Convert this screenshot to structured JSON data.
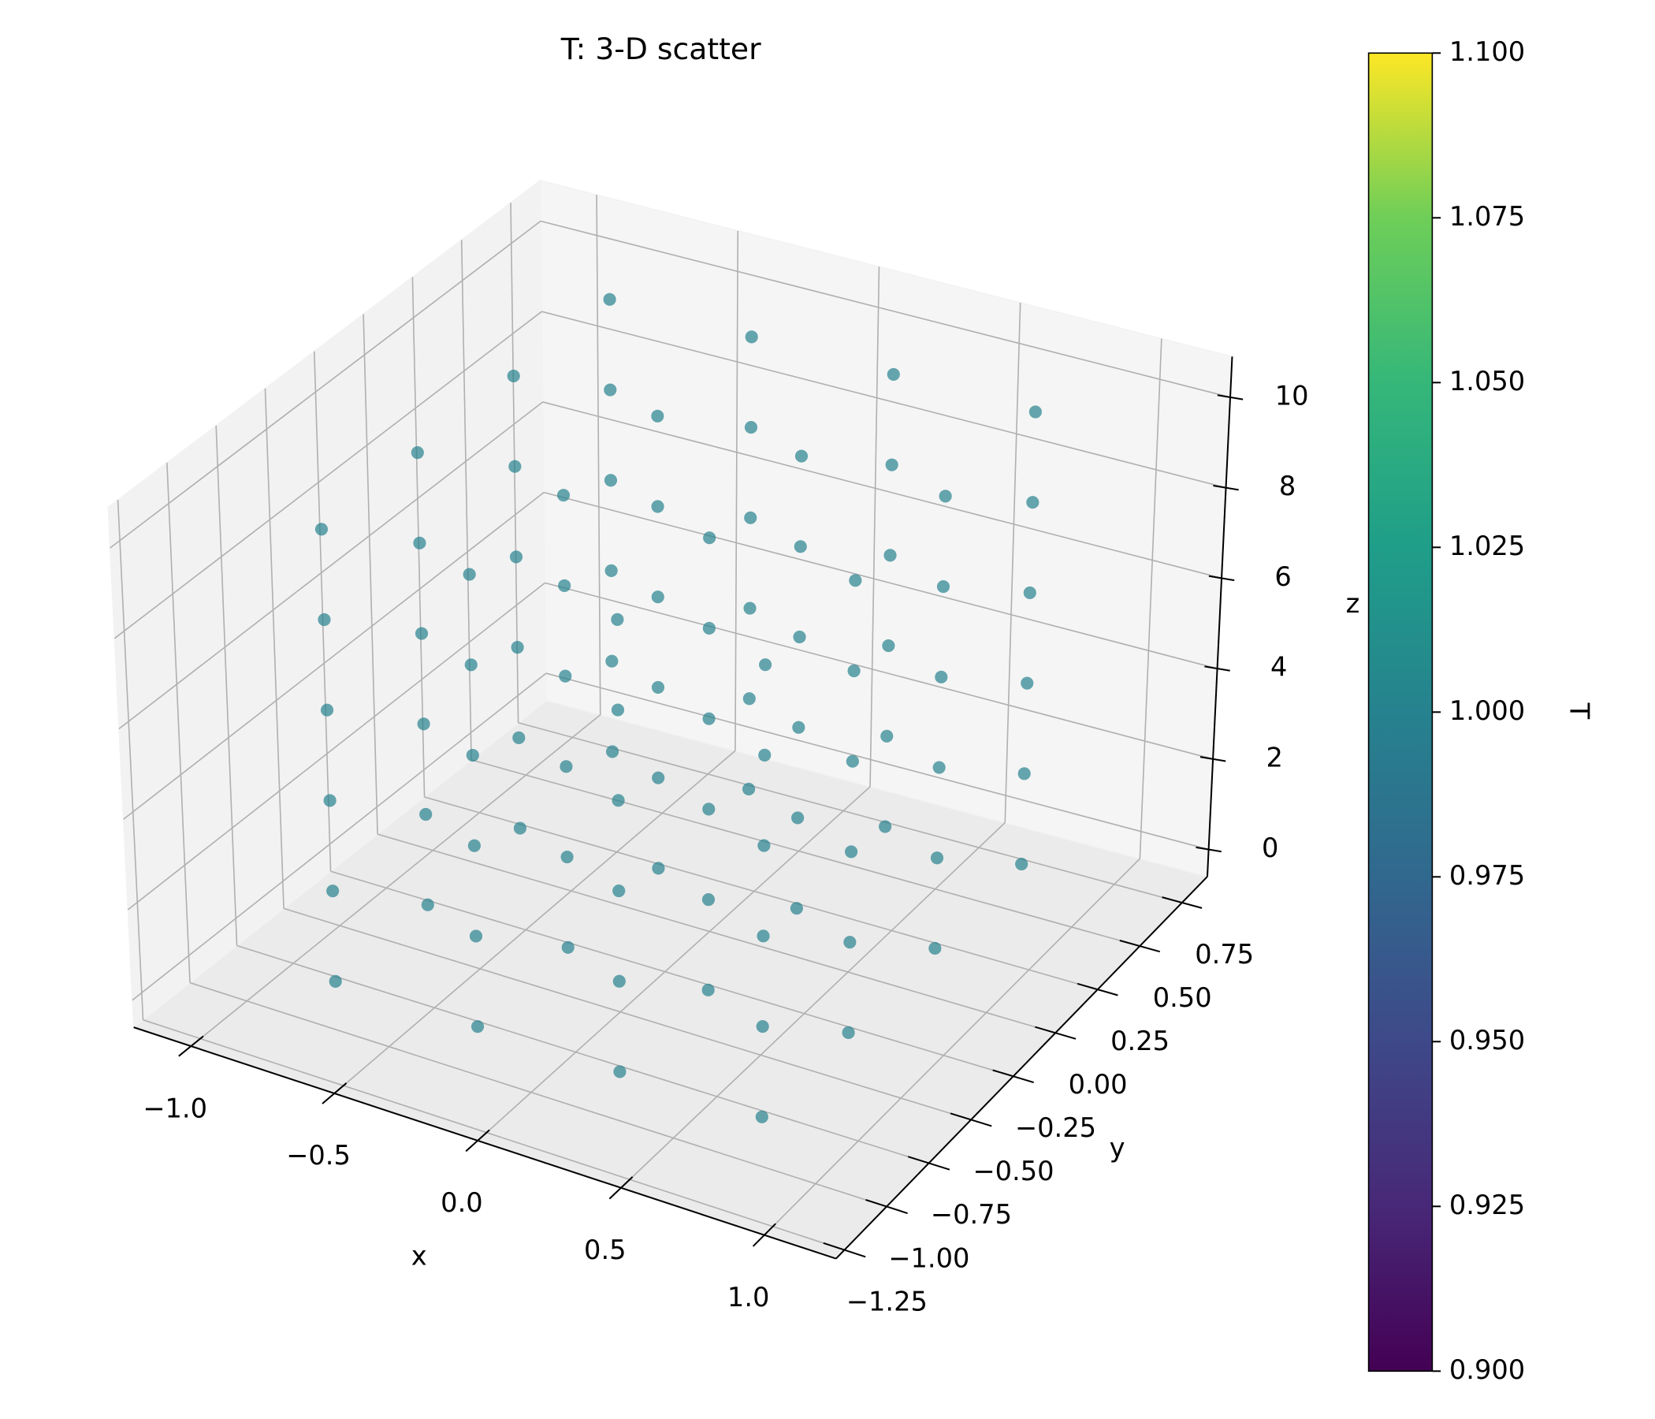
{
  "chart_data": {
    "type": "scatter3d",
    "title": "T: 3-D scatter",
    "x_label": "x",
    "y_label": "y",
    "z_label": "z",
    "colorbar_label": "T",
    "cmap": "viridis",
    "alpha": 0.7,
    "grid": true,
    "xlim": [
      -1.2,
      1.25
    ],
    "ylim": [
      -1.3,
      0.9
    ],
    "zlim": [
      -0.6,
      10.9
    ],
    "clim": [
      0.9,
      1.1
    ],
    "xticks": [
      {
        "value": -1.0,
        "label": "−1.0"
      },
      {
        "value": -0.5,
        "label": "−0.5"
      },
      {
        "value": 0.0,
        "label": "0.0"
      },
      {
        "value": 0.5,
        "label": "0.5"
      },
      {
        "value": 1.0,
        "label": "1.0"
      }
    ],
    "yticks": [
      {
        "value": -1.25,
        "label": "−1.25"
      },
      {
        "value": -1.0,
        "label": "−1.00"
      },
      {
        "value": -0.75,
        "label": "−0.75"
      },
      {
        "value": -0.5,
        "label": "−0.50"
      },
      {
        "value": -0.25,
        "label": "−0.25"
      },
      {
        "value": 0.0,
        "label": "0.00"
      },
      {
        "value": 0.25,
        "label": "0.25"
      },
      {
        "value": 0.5,
        "label": "0.50"
      },
      {
        "value": 0.75,
        "label": "0.75"
      }
    ],
    "zticks": [
      0,
      2,
      4,
      6,
      8,
      10
    ],
    "cticks": [
      {
        "value": 0.9,
        "label": "0.900"
      },
      {
        "value": 0.925,
        "label": "0.925"
      },
      {
        "value": 0.95,
        "label": "0.950"
      },
      {
        "value": 0.975,
        "label": "0.975"
      },
      {
        "value": 1.0,
        "label": "1.000"
      },
      {
        "value": 1.025,
        "label": "1.025"
      },
      {
        "value": 1.05,
        "label": "1.050"
      },
      {
        "value": 1.075,
        "label": "1.075"
      },
      {
        "value": 1.1,
        "label": "1.100"
      }
    ],
    "x": [
      -0.75,
      -0.25,
      0.25,
      0.75,
      -0.75,
      -0.25,
      0.25,
      0.75,
      -0.75,
      -0.25,
      0.25,
      0.75,
      -0.75,
      -0.25,
      0.25,
      0.75,
      -0.75,
      -0.25,
      0.25,
      0.75,
      -0.75,
      -0.25,
      0.25,
      0.75,
      -0.75,
      -0.25,
      0.25,
      0.75,
      -0.75,
      -0.25,
      0.25,
      0.75,
      -0.75,
      -0.25,
      0.25,
      0.75,
      -0.75,
      -0.25,
      0.25,
      0.75,
      -0.75,
      -0.25,
      0.25,
      0.75,
      -0.75,
      -0.25,
      0.25,
      0.75,
      -0.75,
      -0.25,
      0.25,
      0.75,
      -0.75,
      -0.25,
      0.25,
      0.75,
      -0.75,
      -0.25,
      0.25,
      0.75,
      -0.75,
      -0.25,
      0.25,
      0.75,
      -0.75,
      -0.25,
      0.25,
      0.75,
      -0.75,
      -0.25,
      0.25,
      0.75,
      -0.75,
      -0.25,
      0.25,
      0.75,
      -0.75,
      -0.25,
      0.25,
      0.75,
      -0.75,
      -0.25,
      0.25,
      0.75,
      -0.75,
      -0.25,
      0.25,
      0.75,
      -0.75,
      -0.25,
      0.25,
      0.75,
      -0.75,
      -0.25,
      0.25,
      0.75
    ],
    "y": [
      -0.9,
      -0.9,
      -0.9,
      -0.9,
      -0.4,
      -0.4,
      -0.4,
      -0.4,
      0.1,
      0.1,
      0.1,
      0.1,
      0.6,
      0.6,
      0.6,
      0.6,
      -0.9,
      -0.9,
      -0.9,
      -0.9,
      -0.4,
      -0.4,
      -0.4,
      -0.4,
      0.1,
      0.1,
      0.1,
      0.1,
      0.6,
      0.6,
      0.6,
      0.6,
      -0.9,
      -0.9,
      -0.9,
      -0.9,
      -0.4,
      -0.4,
      -0.4,
      -0.4,
      0.1,
      0.1,
      0.1,
      0.1,
      0.6,
      0.6,
      0.6,
      0.6,
      -0.9,
      -0.9,
      -0.9,
      -0.9,
      -0.4,
      -0.4,
      -0.4,
      -0.4,
      0.1,
      0.1,
      0.1,
      0.1,
      0.6,
      0.6,
      0.6,
      0.6,
      -0.9,
      -0.9,
      -0.9,
      -0.9,
      -0.4,
      -0.4,
      -0.4,
      -0.4,
      0.1,
      0.1,
      0.1,
      0.1,
      0.6,
      0.6,
      0.6,
      0.6,
      -0.9,
      -0.9,
      -0.9,
      -0.9,
      -0.4,
      -0.4,
      -0.4,
      -0.4,
      0.1,
      0.1,
      0.1,
      0.1,
      0.6,
      0.6,
      0.6,
      0.6
    ],
    "z": [
      0,
      0,
      0,
      0,
      0,
      0,
      0,
      0,
      0,
      0,
      0,
      0,
      0,
      0,
      0,
      0,
      2,
      2,
      2,
      2,
      2,
      2,
      2,
      2,
      2,
      2,
      2,
      2,
      2,
      2,
      2,
      2,
      4,
      4,
      4,
      4,
      4,
      4,
      4,
      4,
      4,
      4,
      4,
      4,
      4,
      4,
      4,
      4,
      6,
      6,
      6,
      6,
      6,
      6,
      6,
      6,
      6,
      6,
      6,
      6,
      6,
      6,
      6,
      6,
      8,
      8,
      8,
      8,
      8,
      8,
      8,
      8,
      8,
      8,
      8,
      8,
      8,
      8,
      8,
      8,
      10,
      10,
      10,
      10,
      10,
      10,
      10,
      10,
      10,
      10,
      10,
      10,
      10,
      10,
      10,
      10
    ],
    "c": [
      1,
      1,
      1,
      1,
      1,
      1,
      1,
      1,
      1,
      1,
      1,
      1,
      1,
      1,
      1,
      1,
      1,
      1,
      1,
      1,
      1,
      1,
      1,
      1,
      1,
      1,
      1,
      1,
      1,
      1,
      1,
      1,
      1,
      1,
      1,
      1,
      1,
      1,
      1,
      1,
      1,
      1,
      1,
      1,
      1,
      1,
      1,
      1,
      1,
      1,
      1,
      1,
      1,
      1,
      1,
      1,
      1,
      1,
      1,
      1,
      1,
      1,
      1,
      1,
      1,
      1,
      1,
      1,
      1,
      1,
      1,
      1,
      1,
      1,
      1,
      1,
      1,
      1,
      1,
      1,
      1,
      1,
      1,
      1,
      1,
      1,
      1,
      1,
      1,
      1,
      1,
      1,
      1,
      1,
      1,
      1
    ]
  }
}
